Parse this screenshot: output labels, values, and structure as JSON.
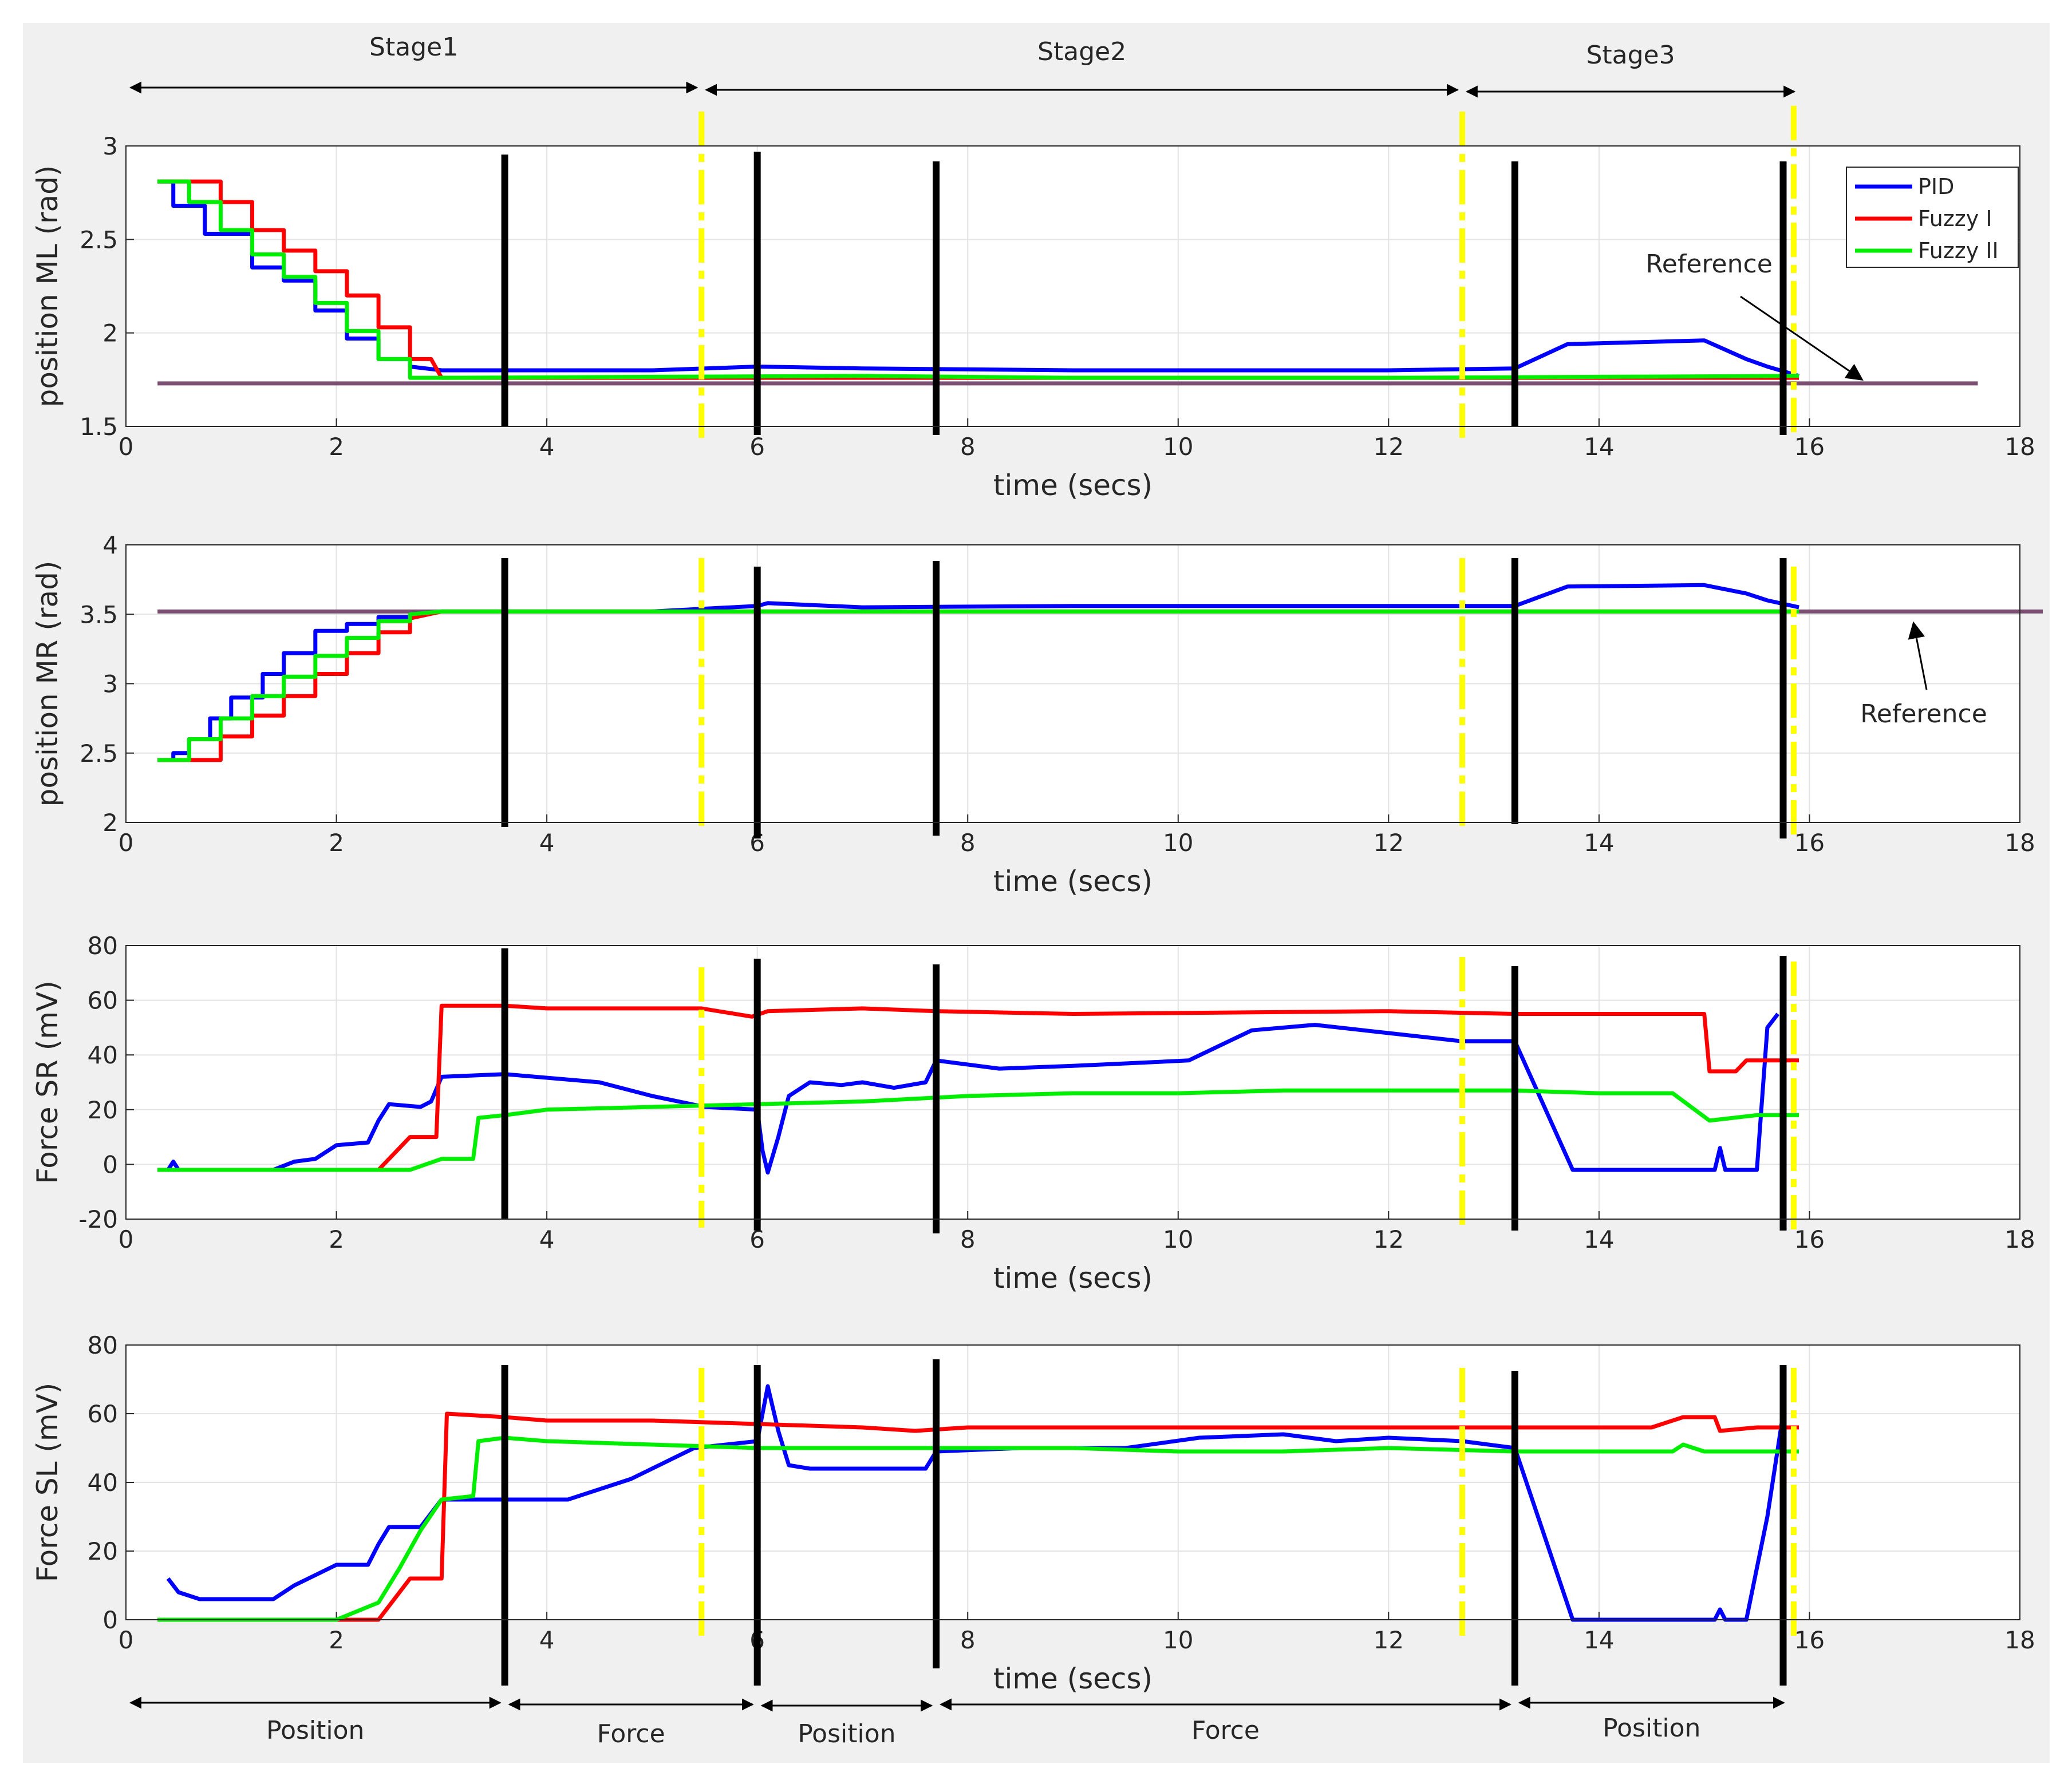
{
  "figure": {
    "background_color": "#f0f0f0",
    "stages": [
      {
        "label": "Stage1",
        "from": 0.0,
        "to": 5.47
      },
      {
        "label": "Stage2",
        "from": 5.47,
        "to": 12.7
      },
      {
        "label": "Stage3",
        "from": 12.7,
        "to": 15.9
      }
    ],
    "modes": [
      {
        "label": "Position",
        "from": 0.0,
        "to": 3.6
      },
      {
        "label": "Force",
        "from": 3.6,
        "to": 6.0
      },
      {
        "label": "Position",
        "from": 6.0,
        "to": 7.7
      },
      {
        "label": "Force",
        "from": 7.7,
        "to": 13.2
      },
      {
        "label": "Position",
        "from": 13.2,
        "to": 15.8
      }
    ],
    "colors": {
      "PID": "#0000ff",
      "Fuzzy I": "#ff0000",
      "Fuzzy II": "#00ee00",
      "reference": "#7a4f72",
      "mode_switch": "#000000",
      "stage_boundary": "#ffff00"
    },
    "mode_switch_times": [
      3.6,
      6.0,
      7.7,
      13.2,
      15.75
    ],
    "stage_boundary_times": [
      5.47,
      12.7,
      15.85
    ]
  },
  "legend": {
    "entries": [
      "PID",
      "Fuzzy I",
      "Fuzzy II"
    ]
  },
  "chart_data": [
    {
      "type": "line",
      "title": "",
      "xlabel": "time (secs)",
      "ylabel": "position ML (rad)",
      "xlim": [
        0,
        18
      ],
      "ylim": [
        1.5,
        3
      ],
      "xticks": [
        "0",
        "2",
        "4",
        "6",
        "8",
        "10",
        "12",
        "14",
        "16",
        "18"
      ],
      "yticks": [
        "1.5",
        "2",
        "2.5",
        "3"
      ],
      "grid": true,
      "reference": 1.73,
      "annotation": {
        "text": "Reference",
        "at": [
          16.5,
          1.75
        ]
      },
      "series": [
        {
          "name": "PID",
          "x": [
            0.3,
            0.45,
            0.45,
            0.75,
            0.75,
            1.2,
            1.2,
            1.5,
            1.5,
            1.8,
            1.8,
            2.1,
            2.1,
            2.4,
            2.4,
            2.7,
            2.7,
            3.0,
            5.0,
            6.0,
            7.0,
            9.0,
            12.0,
            13.2,
            13.7,
            15.0,
            15.4,
            15.6,
            15.9
          ],
          "y": [
            2.81,
            2.81,
            2.68,
            2.68,
            2.53,
            2.53,
            2.35,
            2.35,
            2.28,
            2.28,
            2.12,
            2.12,
            1.97,
            1.97,
            1.86,
            1.86,
            1.82,
            1.8,
            1.8,
            1.82,
            1.81,
            1.8,
            1.8,
            1.81,
            1.94,
            1.96,
            1.86,
            1.82,
            1.77
          ]
        },
        {
          "name": "Fuzzy I",
          "x": [
            0.3,
            0.9,
            0.9,
            1.2,
            1.2,
            1.5,
            1.5,
            1.8,
            1.8,
            2.1,
            2.1,
            2.4,
            2.4,
            2.7,
            2.7,
            2.9,
            3.0,
            15.9
          ],
          "y": [
            2.81,
            2.81,
            2.7,
            2.7,
            2.55,
            2.55,
            2.44,
            2.44,
            2.33,
            2.33,
            2.2,
            2.2,
            2.03,
            2.03,
            1.86,
            1.86,
            1.76,
            1.76
          ]
        },
        {
          "name": "Fuzzy II",
          "x": [
            0.3,
            0.6,
            0.6,
            0.9,
            0.9,
            1.2,
            1.2,
            1.5,
            1.5,
            1.8,
            1.8,
            2.1,
            2.1,
            2.4,
            2.4,
            2.7,
            2.7,
            3.0,
            7.0,
            9.0,
            12.0,
            15.9
          ],
          "y": [
            2.81,
            2.81,
            2.7,
            2.7,
            2.55,
            2.55,
            2.42,
            2.42,
            2.3,
            2.3,
            2.16,
            2.16,
            2.01,
            2.01,
            1.86,
            1.86,
            1.76,
            1.76,
            1.77,
            1.76,
            1.76,
            1.77
          ]
        }
      ]
    },
    {
      "type": "line",
      "title": "",
      "xlabel": "time (secs)",
      "ylabel": "position MR (rad)",
      "xlim": [
        0,
        18
      ],
      "ylim": [
        2,
        4
      ],
      "xticks": [
        "0",
        "2",
        "4",
        "6",
        "8",
        "10",
        "12",
        "14",
        "16",
        "18"
      ],
      "yticks": [
        "2",
        "2.5",
        "3",
        "3.5",
        "4"
      ],
      "grid": true,
      "reference": 3.52,
      "annotation": {
        "text": "Reference",
        "at": [
          17.0,
          3.52
        ]
      },
      "series": [
        {
          "name": "PID",
          "x": [
            0.3,
            0.45,
            0.45,
            0.6,
            0.6,
            0.8,
            0.8,
            1.0,
            1.0,
            1.3,
            1.3,
            1.5,
            1.5,
            1.8,
            1.8,
            2.1,
            2.1,
            2.4,
            2.4,
            2.7,
            2.7,
            3.0,
            5.0,
            6.0,
            6.1,
            7.0,
            9.0,
            12.0,
            13.2,
            13.7,
            15.0,
            15.4,
            15.6,
            15.9
          ],
          "y": [
            2.45,
            2.45,
            2.5,
            2.5,
            2.6,
            2.6,
            2.75,
            2.75,
            2.9,
            2.9,
            3.07,
            3.07,
            3.22,
            3.22,
            3.38,
            3.38,
            3.43,
            3.43,
            3.48,
            3.48,
            3.5,
            3.52,
            3.52,
            3.56,
            3.58,
            3.55,
            3.56,
            3.56,
            3.56,
            3.7,
            3.71,
            3.65,
            3.6,
            3.55
          ]
        },
        {
          "name": "Fuzzy I",
          "x": [
            0.3,
            0.6,
            0.6,
            0.9,
            0.9,
            1.2,
            1.2,
            1.5,
            1.5,
            1.8,
            1.8,
            2.1,
            2.1,
            2.4,
            2.4,
            2.7,
            2.7,
            3.0,
            15.9
          ],
          "y": [
            2.45,
            2.45,
            2.45,
            2.45,
            2.62,
            2.62,
            2.77,
            2.77,
            2.91,
            2.91,
            3.07,
            3.07,
            3.22,
            3.22,
            3.37,
            3.37,
            3.47,
            3.52,
            3.52
          ]
        },
        {
          "name": "Fuzzy II",
          "x": [
            0.3,
            0.6,
            0.6,
            0.9,
            0.9,
            1.2,
            1.2,
            1.5,
            1.5,
            1.8,
            1.8,
            2.1,
            2.1,
            2.4,
            2.4,
            2.7,
            2.7,
            3.0,
            15.9
          ],
          "y": [
            2.45,
            2.45,
            2.6,
            2.6,
            2.75,
            2.75,
            2.91,
            2.91,
            3.05,
            3.05,
            3.2,
            3.2,
            3.33,
            3.33,
            3.45,
            3.45,
            3.5,
            3.52,
            3.52
          ]
        }
      ]
    },
    {
      "type": "line",
      "title": "",
      "xlabel": "time (secs)",
      "ylabel": "Force SR (mV)",
      "xlim": [
        0,
        18
      ],
      "ylim": [
        -20,
        80
      ],
      "xticks": [
        "0",
        "2",
        "4",
        "6",
        "8",
        "10",
        "12",
        "14",
        "16",
        "18"
      ],
      "yticks": [
        "-20",
        "0",
        "20",
        "40",
        "60",
        "80"
      ],
      "grid": true,
      "series": [
        {
          "name": "PID",
          "x": [
            0.3,
            0.4,
            0.45,
            0.5,
            1.4,
            1.6,
            1.8,
            2.0,
            2.3,
            2.4,
            2.5,
            2.8,
            2.9,
            3.0,
            3.6,
            4.5,
            5.0,
            5.5,
            6.0,
            6.05,
            6.1,
            6.2,
            6.3,
            6.5,
            6.8,
            7.0,
            7.3,
            7.6,
            7.7,
            8.3,
            9.0,
            10.1,
            10.7,
            11.3,
            12.0,
            12.7,
            13.2,
            13.75,
            15.0,
            15.1,
            15.15,
            15.2,
            15.5,
            15.6,
            15.7
          ],
          "y": [
            -2,
            -2,
            1,
            -2,
            -2,
            1,
            2,
            7,
            8,
            16,
            22,
            21,
            23,
            32,
            33,
            30,
            25,
            21,
            20,
            5,
            -3,
            10,
            25,
            30,
            29,
            30,
            28,
            30,
            38,
            35,
            36,
            38,
            49,
            51,
            48,
            45,
            45,
            -2,
            -2,
            -2,
            6,
            -2,
            -2,
            50,
            55
          ]
        },
        {
          "name": "Fuzzy I",
          "x": [
            0.3,
            2.4,
            2.7,
            2.95,
            3.0,
            3.6,
            4.0,
            5.0,
            5.47,
            5.95,
            6.1,
            7.0,
            7.7,
            9.0,
            12.0,
            13.2,
            15.0,
            15.05,
            15.3,
            15.4,
            15.9
          ],
          "y": [
            -2,
            -2,
            10,
            10,
            58,
            58,
            57,
            57,
            57,
            54,
            56,
            57,
            56,
            55,
            56,
            55,
            55,
            34,
            34,
            38,
            38
          ]
        },
        {
          "name": "Fuzzy II",
          "x": [
            0.3,
            2.7,
            3.0,
            3.3,
            3.35,
            3.6,
            4.0,
            5.0,
            6.0,
            7.0,
            8.0,
            9.0,
            10.0,
            11.0,
            12.0,
            13.2,
            14.0,
            14.7,
            15.05,
            15.5,
            15.9
          ],
          "y": [
            -2,
            -2,
            2,
            2,
            17,
            18,
            20,
            21,
            22,
            23,
            25,
            26,
            26,
            27,
            27,
            27,
            26,
            26,
            16,
            18,
            18
          ]
        }
      ]
    },
    {
      "type": "line",
      "title": "",
      "xlabel": "time (secs)",
      "ylabel": "Force SL (mV)",
      "xlim": [
        0,
        18
      ],
      "ylim": [
        0,
        80
      ],
      "xticks": [
        "0",
        "2",
        "4",
        "6",
        "8",
        "10",
        "12",
        "14",
        "16",
        "18"
      ],
      "yticks": [
        "0",
        "20",
        "40",
        "60",
        "80"
      ],
      "grid": true,
      "series": [
        {
          "name": "PID",
          "x": [
            0.4,
            0.5,
            0.7,
            1.0,
            1.4,
            1.6,
            1.8,
            2.0,
            2.3,
            2.4,
            2.5,
            2.8,
            3.0,
            3.6,
            4.2,
            4.8,
            5.4,
            6.0,
            6.1,
            6.2,
            6.3,
            6.5,
            7.0,
            7.6,
            7.7,
            8.5,
            9.5,
            10.2,
            11.0,
            11.5,
            12.0,
            12.7,
            13.2,
            13.75,
            15.0,
            15.1,
            15.15,
            15.2,
            15.4,
            15.6,
            15.75
          ],
          "y": [
            12,
            8,
            6,
            6,
            6,
            10,
            13,
            16,
            16,
            22,
            27,
            27,
            35,
            35,
            35,
            41,
            50,
            52,
            68,
            55,
            45,
            44,
            44,
            44,
            49,
            50,
            50,
            53,
            54,
            52,
            53,
            52,
            50,
            0,
            0,
            0,
            3,
            0,
            0,
            30,
            60
          ]
        },
        {
          "name": "Fuzzy I",
          "x": [
            0.3,
            2.4,
            2.7,
            3.0,
            3.05,
            3.6,
            4.0,
            5.0,
            6.0,
            7.0,
            7.5,
            8.0,
            9.0,
            10.0,
            11.0,
            12.0,
            13.2,
            14.0,
            14.5,
            14.8,
            15.1,
            15.15,
            15.5,
            15.9
          ],
          "y": [
            0,
            0,
            12,
            12,
            60,
            59,
            58,
            58,
            57,
            56,
            55,
            56,
            56,
            56,
            56,
            56,
            56,
            56,
            56,
            59,
            59,
            55,
            56,
            56
          ]
        },
        {
          "name": "Fuzzy II",
          "x": [
            0.3,
            2.0,
            2.4,
            2.6,
            2.8,
            3.0,
            3.3,
            3.35,
            3.6,
            4.0,
            5.0,
            6.0,
            7.0,
            8.0,
            9.0,
            10.0,
            11.0,
            12.0,
            13.2,
            14.0,
            14.7,
            14.8,
            15.0,
            15.9
          ],
          "y": [
            0,
            0,
            5,
            15,
            26,
            35,
            36,
            52,
            53,
            52,
            51,
            50,
            50,
            50,
            50,
            49,
            49,
            50,
            49,
            49,
            49,
            51,
            49,
            49
          ]
        }
      ]
    }
  ]
}
